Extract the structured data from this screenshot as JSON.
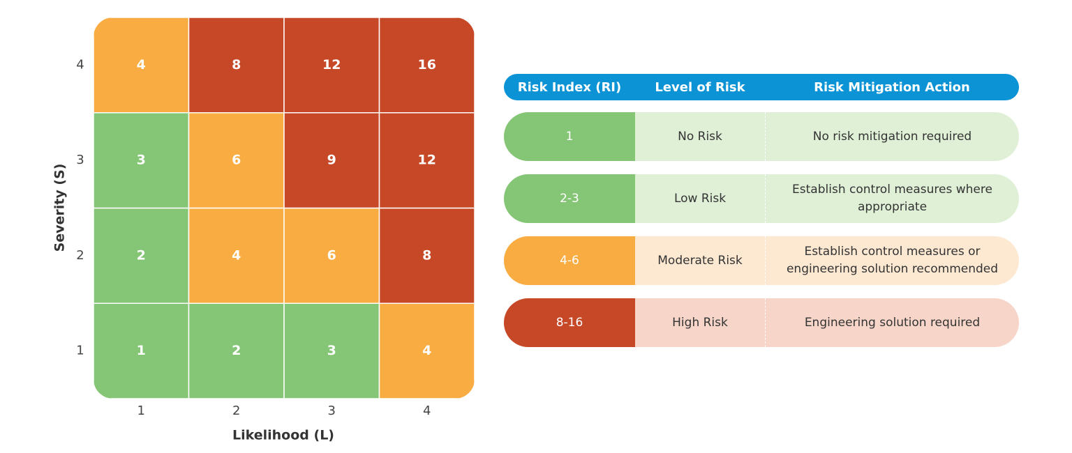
{
  "chart_data": {
    "type": "heatmap",
    "x_label": "Likelihood (L)",
    "y_label": "Severity (S)",
    "x_categories": [
      "1",
      "2",
      "3",
      "4"
    ],
    "y_categories": [
      "1",
      "2",
      "3",
      "4"
    ],
    "values": [
      [
        1,
        2,
        3,
        4
      ],
      [
        2,
        4,
        6,
        8
      ],
      [
        3,
        6,
        9,
        12
      ],
      [
        4,
        8,
        12,
        16
      ]
    ],
    "colors": [
      [
        "#85c676",
        "#85c676",
        "#85c676",
        "#f8ac41"
      ],
      [
        "#85c676",
        "#f8ac41",
        "#f8ac41",
        "#c64827"
      ],
      [
        "#85c676",
        "#f8ac41",
        "#c64827",
        "#c64827"
      ],
      [
        "#f8ac41",
        "#c64827",
        "#c64827",
        "#c64827"
      ]
    ]
  },
  "table": {
    "header": [
      "Risk Index (RI)",
      "Level of Risk",
      "Risk Mitigation Action"
    ],
    "header_color": "#0b93d5",
    "rows": [
      {
        "cells": [
          "1",
          "No Risk",
          "No risk mitigation required"
        ],
        "color": "#85c676",
        "tint": "#dff0d6"
      },
      {
        "cells": [
          "2-3",
          "Low Risk",
          "Establish control measures where appropriate"
        ],
        "color": "#85c676",
        "tint": "#dff0d6"
      },
      {
        "cells": [
          "4-6",
          "Moderate Risk",
          "Establish control measures or engineering solution recommended"
        ],
        "color": "#f8ac41",
        "tint": "#fde8d2"
      },
      {
        "cells": [
          "8-16",
          "High Risk",
          "Engineering solution required"
        ],
        "color": "#c64827",
        "tint": "#f7d6c9"
      }
    ]
  }
}
